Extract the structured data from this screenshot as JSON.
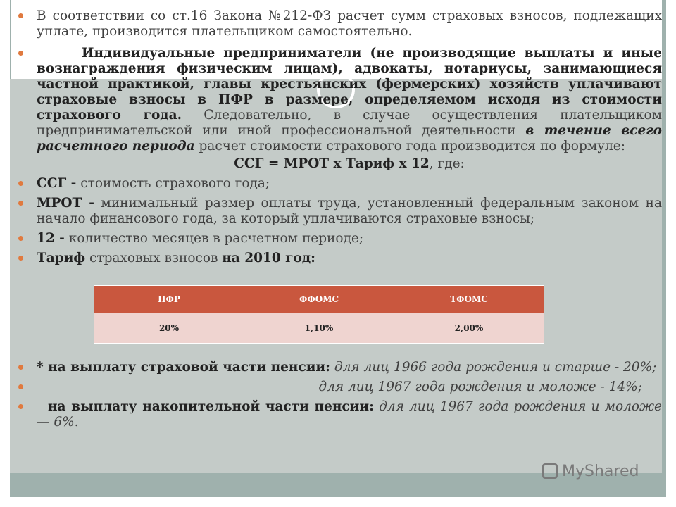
{
  "paragraphs": {
    "p1": "В соответствии со ст.16 Закона №212-ФЗ расчет сумм страховых взносов, подлежащих уплате, производится плательщиком самостоятельно.",
    "p2_bold": "Индивидуальные предприниматели (не производящие выплаты и иные вознаграждения физическим лицам), адвокаты, нотариусы, занимающиеся частной практикой, главы крестьянских (фермерских) хозяйств уплачивают страховые взносы в ПФР в размере, определяемом исходя из стоимости страхового года.",
    "p2_text1": " Следовательно, в случае осуществления плательщиком предпринимательской или иной профессиональной деятельности ",
    "p2_bi": "в течение всего расчетного периода",
    "p2_text2": " расчет стоимости страхового года производится по формуле:",
    "formula_bold": "ССГ = МРОТ х Тариф х 12",
    "formula_tail": ", где:",
    "ssg_bold": "ССГ -",
    "ssg_text": " стоимость страхового года;",
    "mrot_bold": "МРОТ -",
    "mrot_text": "  минимальный размер оплаты труда, установленный федеральным законом на начало финансового года, за который уплачиваются страховые взносы;",
    "n12_bold": "12 -",
    "n12_text": " количество месяцев в расчетном периоде;",
    "tarif_bold": "Тариф",
    "tarif_text": " страховых взносов ",
    "tarif_year": "на 2010 год:",
    "star_bold": "* на выплату страховой части пенсии:",
    "star_it": " для лиц 1966 года рождения и старше - 20%;",
    "line2_it": "для лиц 1967 года рождения и моложе - 14%;",
    "nak_bold": "на выплату накопительной части пенсии:",
    "nak_it": " для лиц 1967 года рождения и моложе — 6%."
  },
  "table": {
    "headers": [
      "ПФР",
      "ФФОМС",
      "ТФОМС"
    ],
    "values": [
      "20%",
      "1,10%",
      "2,00%"
    ]
  },
  "watermark": "MyShared",
  "colors": {
    "accent": "#c9573e",
    "bullet": "#e07a3f",
    "band": "#c4cbc8",
    "cell": "#efd4d0"
  }
}
